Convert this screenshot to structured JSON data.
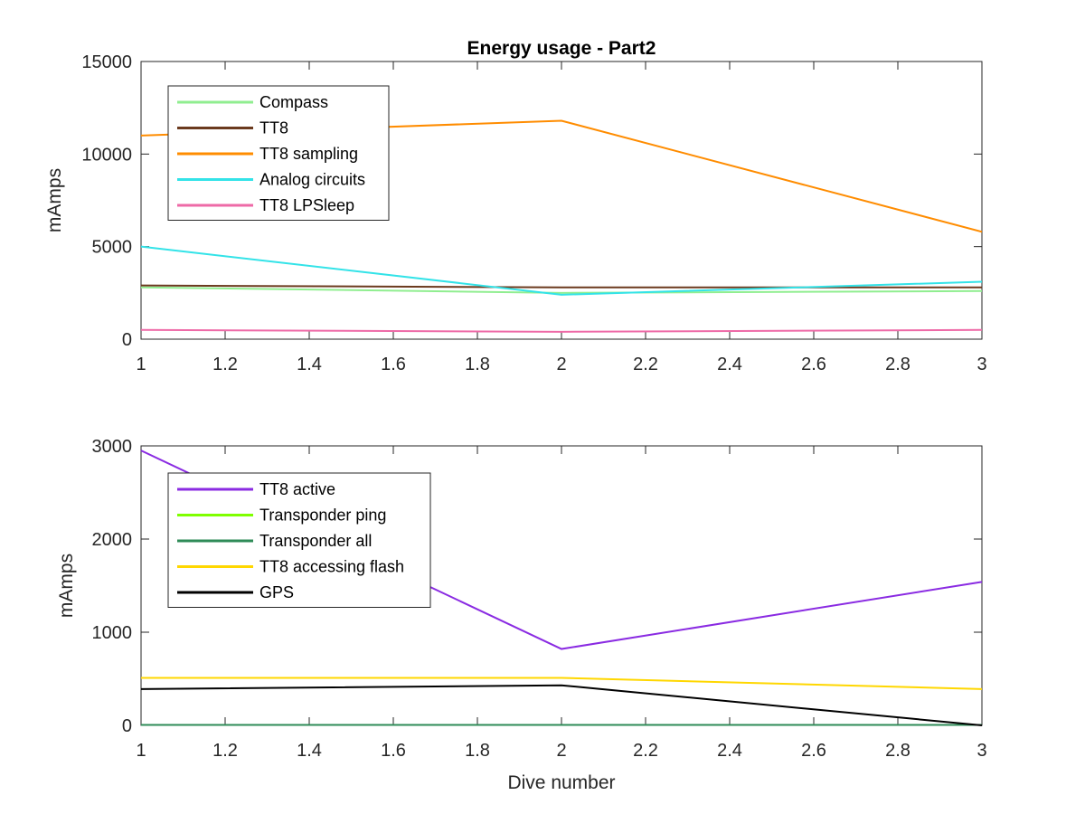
{
  "chart_data": [
    {
      "type": "line",
      "title": "Energy usage - Part2",
      "xlabel": "",
      "ylabel": "mAmps",
      "xlim": [
        1,
        3
      ],
      "ylim": [
        0,
        15000
      ],
      "xticks": [
        1,
        1.2,
        1.4,
        1.6,
        1.8,
        2,
        2.2,
        2.4,
        2.6,
        2.8,
        3
      ],
      "yticks": [
        0,
        5000,
        10000,
        15000
      ],
      "legend_position": "top-left",
      "x": [
        1,
        2,
        3
      ],
      "series": [
        {
          "name": "Compass",
          "color": "#90ee90",
          "values": [
            2800,
            2500,
            2600
          ]
        },
        {
          "name": "TT8",
          "color": "#6b3a1e",
          "values": [
            2900,
            2800,
            2800
          ]
        },
        {
          "name": "TT8 sampling",
          "color": "#ff8c00",
          "values": [
            11000,
            11800,
            5800
          ]
        },
        {
          "name": "Analog circuits",
          "color": "#33e3e8",
          "values": [
            5000,
            2400,
            3100
          ]
        },
        {
          "name": "TT8 LPSleep",
          "color": "#ee6aa7",
          "values": [
            500,
            400,
            500
          ]
        }
      ]
    },
    {
      "type": "line",
      "title": "",
      "xlabel": "Dive number",
      "ylabel": "mAmps",
      "xlim": [
        1,
        3
      ],
      "ylim": [
        0,
        3000
      ],
      "xticks": [
        1,
        1.2,
        1.4,
        1.6,
        1.8,
        2,
        2.2,
        2.4,
        2.6,
        2.8,
        3
      ],
      "yticks": [
        0,
        1000,
        2000,
        3000
      ],
      "legend_position": "top-left",
      "x": [
        1,
        2,
        3
      ],
      "series": [
        {
          "name": "TT8 active",
          "color": "#8a2be2",
          "values": [
            2950,
            820,
            1540
          ]
        },
        {
          "name": "Transponder ping",
          "color": "#7fff00",
          "values": [
            5,
            5,
            5
          ]
        },
        {
          "name": "Transponder all",
          "color": "#2e8b57",
          "values": [
            5,
            5,
            5
          ]
        },
        {
          "name": "TT8 accessing flash",
          "color": "#ffd700",
          "values": [
            510,
            510,
            390
          ]
        },
        {
          "name": "GPS",
          "color": "#000000",
          "values": [
            390,
            430,
            0
          ]
        }
      ]
    }
  ]
}
